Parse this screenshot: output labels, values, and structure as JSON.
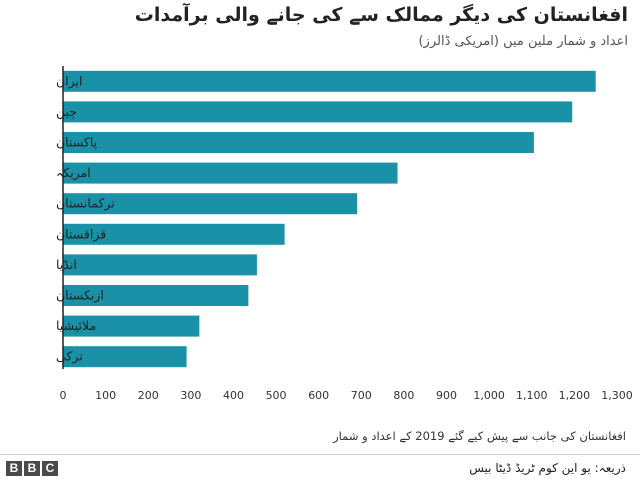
{
  "chart_data": {
    "type": "bar",
    "orientation": "horizontal",
    "title": "افغانستان کی دیگر ممالک سے کی جانے والی برآمدات",
    "subtitle": "اعداد و شمار ملین میں (امریکی ڈالرز)",
    "categories": [
      "ایران",
      "چین",
      "پاکستان",
      "امریکہ",
      "ترکمانستان",
      "قزاقستان",
      "انڈیا",
      "ازبکستان",
      "ملائیشیا",
      "ترکی"
    ],
    "values": [
      1250,
      1195,
      1105,
      785,
      690,
      520,
      455,
      435,
      320,
      290
    ],
    "xlim": [
      0,
      1300
    ],
    "tick_values": [
      0,
      100,
      200,
      300,
      400,
      500,
      600,
      700,
      800,
      900,
      1000,
      1100,
      1200,
      1300
    ],
    "tick_labels": [
      "0",
      "100",
      "200",
      "300",
      "400",
      "500",
      "600",
      "700",
      "800",
      "900",
      "1,000",
      "1,100",
      "1,200",
      "1,300"
    ],
    "bar_color": "#1a91a6",
    "grid": false
  },
  "footnote": "افغانستان کی جانب سے پیش کیے گئے 2019 کے اعداد و شمار",
  "source": "ذریعہ: یو این کوم ٹریڈ ڈیٹا بیس",
  "logo": {
    "letters": [
      "B",
      "B",
      "C"
    ]
  }
}
